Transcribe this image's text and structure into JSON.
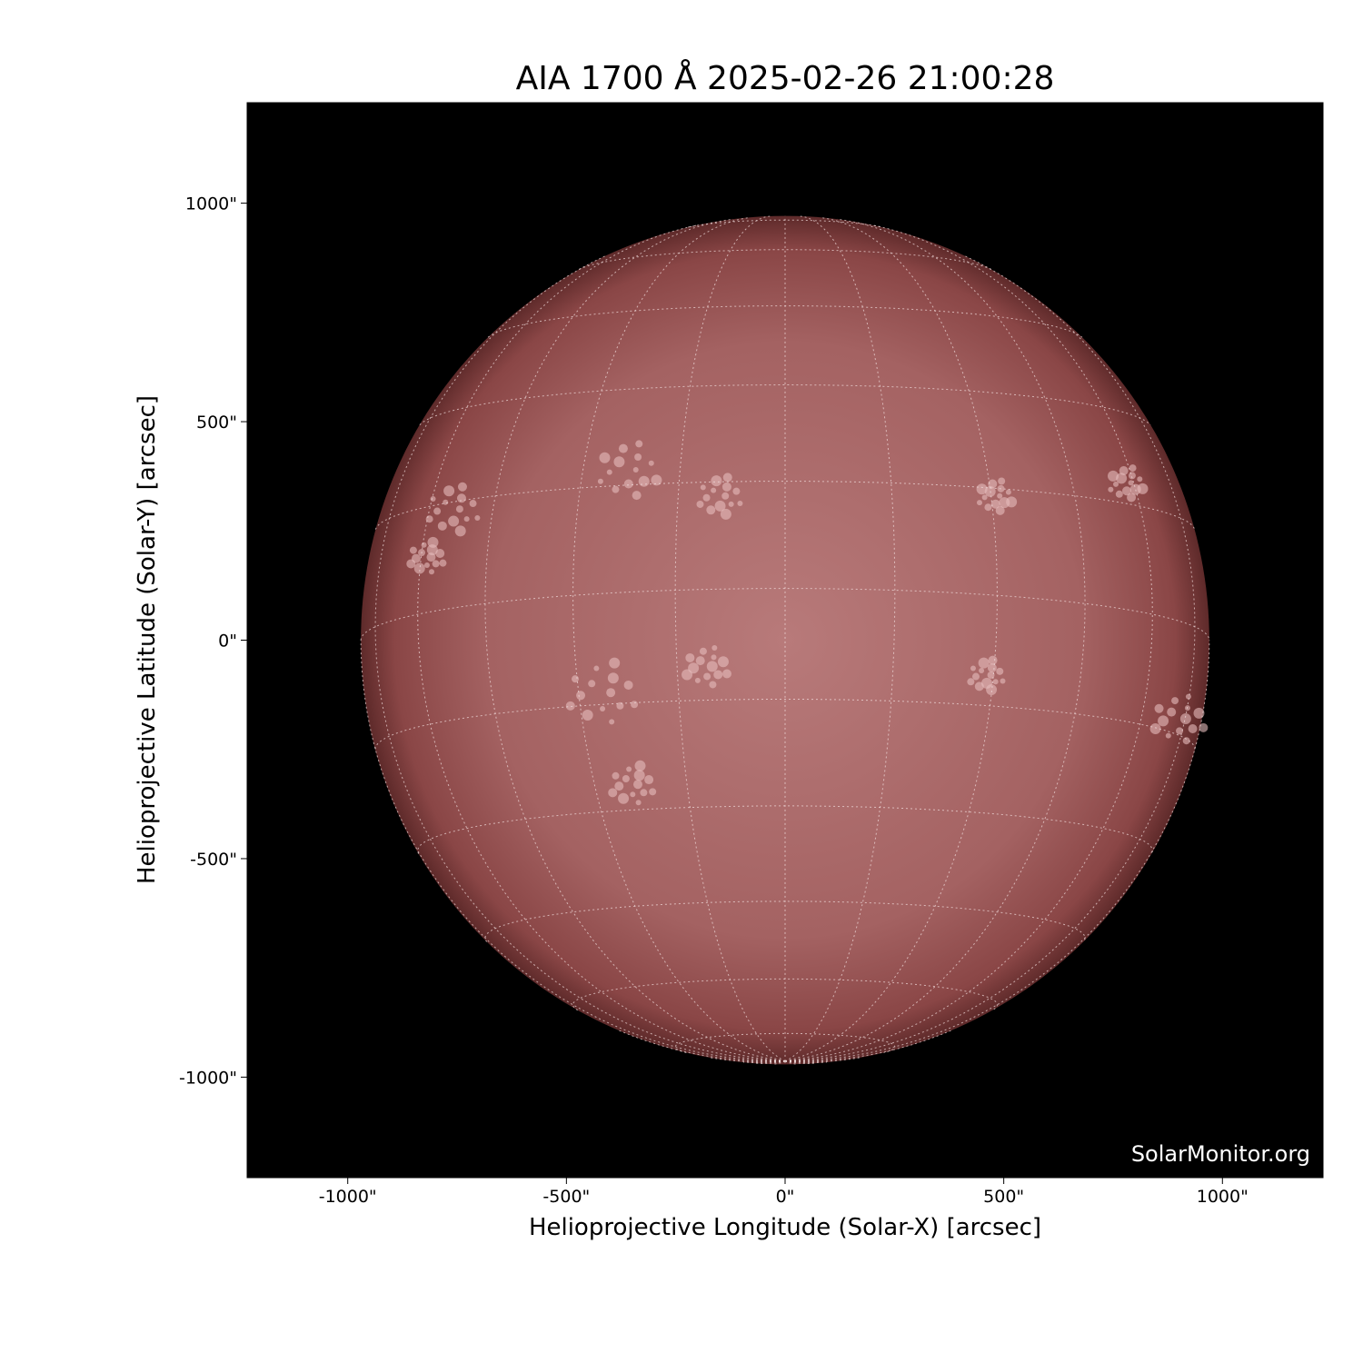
{
  "chart_data": {
    "type": "image",
    "title": "AIA 1700 Å 2025-02-26 21:00:28",
    "xlabel": "Helioprojective Longitude (Solar-X) [arcsec]",
    "ylabel": "Helioprojective Latitude (Solar-Y) [arcsec]",
    "xlim": [
      -1230,
      1230
    ],
    "ylim": [
      -1230,
      1230
    ],
    "x_ticks": [
      -1000,
      -500,
      0,
      500,
      1000
    ],
    "y_ticks": [
      1000,
      500,
      0,
      -500,
      -1000
    ],
    "x_tick_labels": [
      "-1000\"",
      "-500\"",
      "0\"",
      "500\"",
      "1000\""
    ],
    "y_tick_labels": [
      "1000\"",
      "500\"",
      "0\"",
      "-500\"",
      "-1000\""
    ],
    "solar_radius_arcsec": 970,
    "grid_spacing_deg": 15,
    "colormap": "sdoaia1700",
    "disk_color": "#a86060",
    "background_color": "#000000",
    "watermark": "SolarMonitor.org"
  }
}
